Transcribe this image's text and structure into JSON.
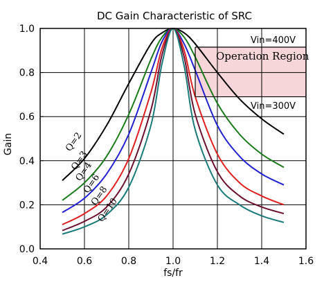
{
  "chart_data": {
    "type": "line",
    "title": "DC Gain Characteristic of SRC",
    "xlabel": "fs/fr",
    "ylabel": "Gain",
    "xlim": [
      0.4,
      1.6
    ],
    "ylim": [
      0.0,
      1.0
    ],
    "xticks": [
      "0.4",
      "0.6",
      "0.8",
      "1.0",
      "1.2",
      "1.4",
      "1.6"
    ],
    "yticks": [
      "0.0",
      "0.2",
      "0.4",
      "0.6",
      "0.8",
      "1.0"
    ],
    "grid": true,
    "x": [
      0.5,
      0.6,
      0.7,
      0.8,
      0.9,
      0.95,
      1.0,
      1.05,
      1.1,
      1.2,
      1.3,
      1.4,
      1.5
    ],
    "series": [
      {
        "name": "Q=2",
        "color": "#000000",
        "values": [
          0.31,
          0.41,
          0.56,
          0.75,
          0.93,
          0.98,
          1.0,
          0.98,
          0.93,
          0.8,
          0.68,
          0.59,
          0.52
        ]
      },
      {
        "name": "Q=3",
        "color": "#1a7a1a",
        "values": [
          0.22,
          0.3,
          0.42,
          0.61,
          0.86,
          0.96,
          1.0,
          0.96,
          0.87,
          0.66,
          0.52,
          0.43,
          0.37
        ]
      },
      {
        "name": "Q=4",
        "color": "#2020d0",
        "values": [
          0.165,
          0.23,
          0.34,
          0.52,
          0.8,
          0.94,
          1.0,
          0.93,
          0.81,
          0.56,
          0.42,
          0.34,
          0.29
        ]
      },
      {
        "name": "Q=6",
        "color": "#e02020",
        "values": [
          0.11,
          0.16,
          0.24,
          0.41,
          0.71,
          0.91,
          1.0,
          0.9,
          0.69,
          0.43,
          0.3,
          0.24,
          0.2
        ]
      },
      {
        "name": "Q=8",
        "color": "#6a1030",
        "values": [
          0.083,
          0.125,
          0.19,
          0.34,
          0.63,
          0.88,
          1.0,
          0.87,
          0.61,
          0.35,
          0.24,
          0.19,
          0.16
        ]
      },
      {
        "name": "Q=10",
        "color": "#1a7a7a",
        "values": [
          0.067,
          0.1,
          0.155,
          0.28,
          0.56,
          0.84,
          1.0,
          0.83,
          0.54,
          0.29,
          0.2,
          0.15,
          0.12
        ]
      }
    ],
    "annotations": {
      "vin_high": "Vin=400V",
      "vin_low": "Vin=300V",
      "region": "Operation Region",
      "region_bounds": {
        "x": [
          1.1,
          1.6
        ],
        "y": [
          0.69,
          0.915
        ]
      },
      "region_color": "#f6d6d8"
    }
  }
}
